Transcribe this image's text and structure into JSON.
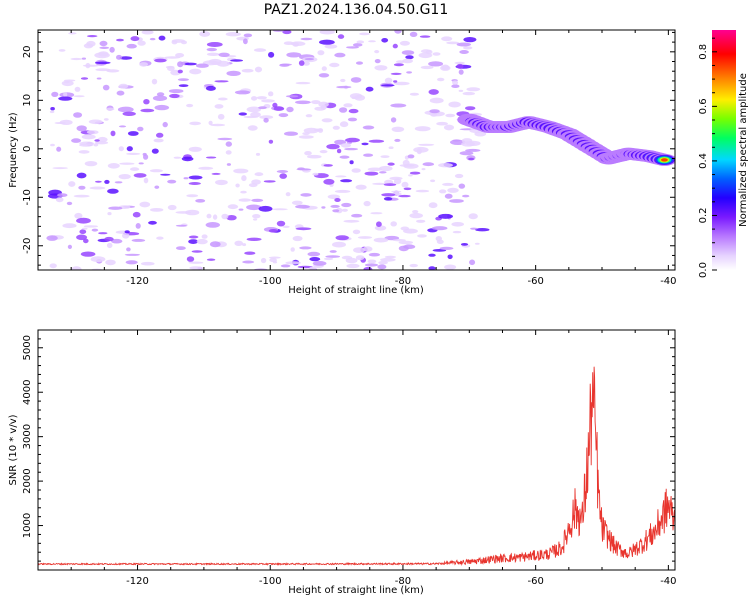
{
  "title": "PAZ1.2024.136.04.50.G11",
  "chart_data": [
    {
      "type": "heatmap",
      "title": "PAZ1.2024.136.04.50.G11",
      "xlabel": "Height of straight line (km)",
      "ylabel": "Frequency (Hz)",
      "xlim": [
        -135,
        -39
      ],
      "ylim": [
        -25,
        24.5
      ],
      "x_ticks": [
        -120,
        -100,
        -80,
        -60,
        -40
      ],
      "y_ticks": [
        -20,
        -10,
        0,
        10,
        20
      ],
      "colorbar": {
        "label": "Normalized spectral amplitude",
        "range": [
          0,
          0.88
        ],
        "ticks": [
          0.0,
          0.2,
          0.4,
          0.6,
          0.8
        ],
        "colormap": "rainbow (white-lavender-purple-blue-cyan-green-yellow-red-magenta)"
      },
      "noise_region": {
        "x_range": [
          -133,
          -68
        ],
        "y_range": [
          -25,
          24.5
        ],
        "typical_amplitude": 0.15
      },
      "signal_ridge": [
        {
          "x": -70,
          "y": 6,
          "amplitude": 0.2
        },
        {
          "x": -67,
          "y": 4.5,
          "amplitude": 0.5
        },
        {
          "x": -64,
          "y": 4.5,
          "amplitude": 0.35
        },
        {
          "x": -61,
          "y": 5.5,
          "amplitude": 0.45
        },
        {
          "x": -58,
          "y": 4.5,
          "amplitude": 0.5
        },
        {
          "x": -55,
          "y": 3.0,
          "amplitude": 0.3
        },
        {
          "x": -52,
          "y": 0.5,
          "amplitude": 0.3
        },
        {
          "x": -49,
          "y": -2.0,
          "amplitude": 0.3
        },
        {
          "x": -46,
          "y": -1.0,
          "amplitude": 0.3
        },
        {
          "x": -43,
          "y": -1.5,
          "amplitude": 0.55
        },
        {
          "x": -40,
          "y": -2.5,
          "amplitude": 0.85
        }
      ],
      "colors": {
        "colorbar": [
          "#ffffff",
          "#e6d2ff",
          "#b878ff",
          "#7a1aff",
          "#2400ff",
          "#0060ff",
          "#00d8ff",
          "#00ff60",
          "#78ff00",
          "#ffee00",
          "#ff8000",
          "#ff0000",
          "#ff0090"
        ]
      }
    },
    {
      "type": "line",
      "xlabel": "Height of straight line (km)",
      "ylabel": "SNR (10 * v/v)",
      "xlim": [
        -135,
        -39
      ],
      "ylim": [
        0,
        5400
      ],
      "x_ticks": [
        -120,
        -100,
        -80,
        -60,
        -40
      ],
      "y_ticks": [
        1000,
        2000,
        3000,
        4000,
        5000
      ],
      "series": [
        {
          "color": "#e8352e",
          "envelope_points": [
            {
              "x": -135,
              "y": 150
            },
            {
              "x": -100,
              "y": 150
            },
            {
              "x": -75,
              "y": 160
            },
            {
              "x": -70,
              "y": 250
            },
            {
              "x": -66,
              "y": 350
            },
            {
              "x": -62,
              "y": 400
            },
            {
              "x": -58,
              "y": 500
            },
            {
              "x": -56,
              "y": 700
            },
            {
              "x": -54,
              "y": 1900
            },
            {
              "x": -53,
              "y": 1500
            },
            {
              "x": -52,
              "y": 3600
            },
            {
              "x": -51.5,
              "y": 5300
            },
            {
              "x": -51,
              "y": 4300
            },
            {
              "x": -50.5,
              "y": 2200
            },
            {
              "x": -50,
              "y": 1300
            },
            {
              "x": -48,
              "y": 700
            },
            {
              "x": -46,
              "y": 500
            },
            {
              "x": -44,
              "y": 800
            },
            {
              "x": -42,
              "y": 1200
            },
            {
              "x": -40,
              "y": 2000
            },
            {
              "x": -39,
              "y": 1500
            }
          ]
        }
      ]
    }
  ]
}
